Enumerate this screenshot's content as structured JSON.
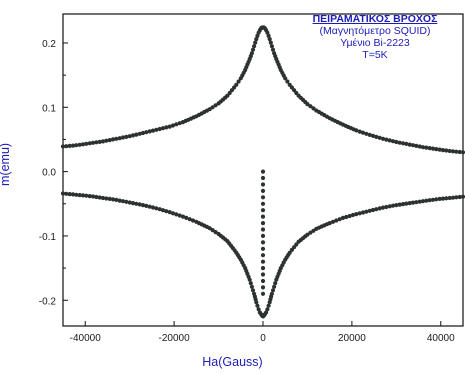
{
  "chart_data": {
    "type": "scatter",
    "title": [
      "ΠΕΙΡΑΜΑΤΙΚΟΣ ΒΡΟΧΟΣ",
      "(Μαγνητόμετρο SQUID)",
      "Υμένιο Bi-2223",
      "T=5K"
    ],
    "xlabel": "Ha(Gauss)",
    "ylabel": "m(emu)",
    "xlim": [
      -45000,
      45000
    ],
    "ylim": [
      -0.24,
      0.245
    ],
    "xticks": [
      "-40000",
      "-20000",
      "0",
      "20000",
      "40000"
    ],
    "xtick_values": [
      -40000,
      -20000,
      0,
      20000,
      40000
    ],
    "yticks": [
      "0.2",
      "0.1",
      "0.0",
      "-0.1",
      "-0.2"
    ],
    "ytick_values": [
      0.2,
      0.1,
      0.0,
      -0.1,
      -0.2
    ],
    "marker_color": "#2c332e",
    "series": [
      {
        "x": [
          -45000,
          -42000,
          -39000,
          -36000,
          -33000,
          -30000,
          -27000,
          -24000,
          -21000,
          -18000,
          -15000,
          -12000,
          -10000,
          -8000,
          -6000,
          -5000,
          -4000,
          -3000,
          -2500,
          -2000,
          -1500,
          -1000,
          -700,
          -400,
          -200,
          0,
          200,
          400,
          700,
          1000,
          1500,
          2000,
          2500,
          3000,
          4000,
          5000,
          6000,
          8000,
          10000,
          12000,
          15000,
          18000,
          21000,
          24000,
          27000,
          30000,
          33000,
          36000,
          39000,
          42000,
          45000
        ],
        "y": [
          0.039,
          0.041,
          0.044,
          0.047,
          0.051,
          0.055,
          0.06,
          0.065,
          0.07,
          0.077,
          0.086,
          0.097,
          0.106,
          0.118,
          0.135,
          0.145,
          0.158,
          0.175,
          0.184,
          0.195,
          0.206,
          0.216,
          0.22,
          0.223,
          0.224,
          0.224,
          0.224,
          0.223,
          0.22,
          0.216,
          0.206,
          0.195,
          0.184,
          0.175,
          0.158,
          0.145,
          0.135,
          0.118,
          0.105,
          0.095,
          0.083,
          0.073,
          0.064,
          0.057,
          0.051,
          0.046,
          0.042,
          0.038,
          0.035,
          0.032,
          0.03
        ]
      },
      {
        "x": [
          -45000,
          -42000,
          -39000,
          -36000,
          -33000,
          -30000,
          -27000,
          -24000,
          -21000,
          -18000,
          -15000,
          -12000,
          -10000,
          -8000,
          -6000,
          -5000,
          -4000,
          -3000,
          -2500,
          -2000,
          -1500,
          -1000,
          -700,
          -400,
          -200,
          0,
          200,
          400,
          700,
          1000,
          1500,
          2000,
          2500,
          3000,
          4000,
          5000,
          6000,
          8000,
          10000,
          12000,
          15000,
          18000,
          21000,
          24000,
          27000,
          30000,
          33000,
          36000,
          39000,
          42000,
          45000
        ],
        "y": [
          -0.034,
          -0.036,
          -0.038,
          -0.041,
          -0.044,
          -0.048,
          -0.052,
          -0.057,
          -0.063,
          -0.07,
          -0.078,
          -0.088,
          -0.097,
          -0.108,
          -0.126,
          -0.137,
          -0.15,
          -0.168,
          -0.179,
          -0.19,
          -0.203,
          -0.214,
          -0.219,
          -0.222,
          -0.224,
          -0.225,
          -0.224,
          -0.222,
          -0.219,
          -0.214,
          -0.203,
          -0.19,
          -0.179,
          -0.168,
          -0.15,
          -0.137,
          -0.126,
          -0.109,
          -0.098,
          -0.089,
          -0.08,
          -0.072,
          -0.066,
          -0.061,
          -0.056,
          -0.052,
          -0.049,
          -0.046,
          -0.043,
          -0.041,
          -0.039
        ]
      },
      {
        "x": [
          0,
          0,
          0,
          0,
          0,
          0,
          0,
          0,
          0,
          0,
          0,
          0,
          0,
          0,
          0,
          0,
          0,
          0,
          0,
          0
        ],
        "y": [
          0.0,
          -0.01,
          -0.02,
          -0.03,
          -0.04,
          -0.05,
          -0.06,
          -0.07,
          -0.08,
          -0.09,
          -0.1,
          -0.11,
          -0.12,
          -0.13,
          -0.14,
          -0.15,
          -0.16,
          -0.17,
          -0.18,
          -0.19
        ]
      }
    ]
  }
}
